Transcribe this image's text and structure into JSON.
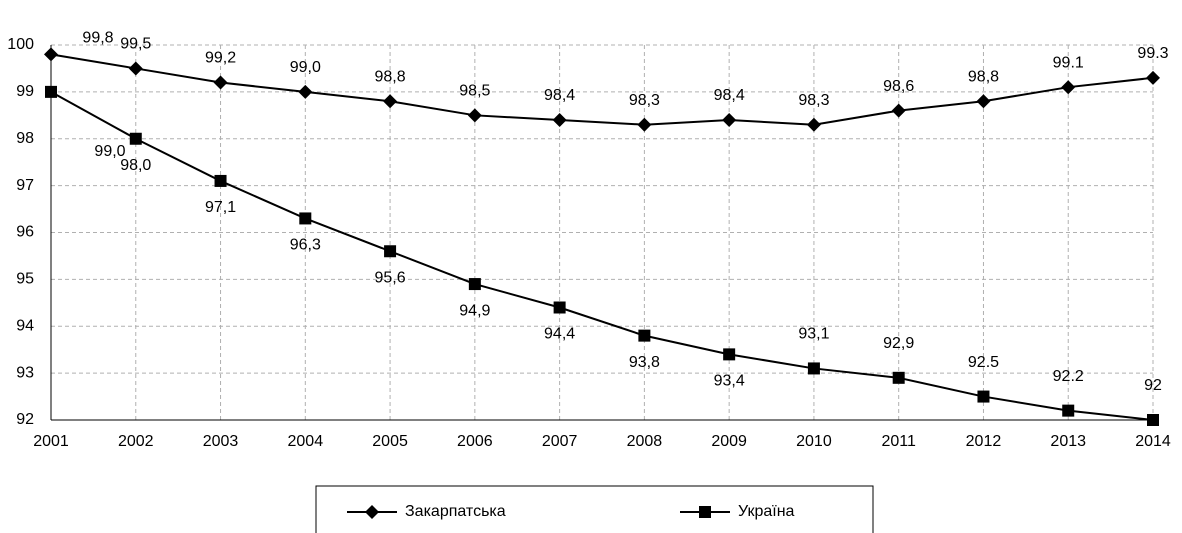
{
  "chart_data": {
    "type": "line",
    "categories": [
      "2001",
      "2002",
      "2003",
      "2004",
      "2005",
      "2006",
      "2007",
      "2008",
      "2009",
      "2010",
      "2011",
      "2012",
      "2013",
      "2014"
    ],
    "series": [
      {
        "name": "Закарпатська",
        "color": "#000000",
        "marker": "diamond",
        "values": [
          99.8,
          99.5,
          99.2,
          99.0,
          98.8,
          98.5,
          98.4,
          98.3,
          98.4,
          98.3,
          98.6,
          98.8,
          99.1,
          99.3
        ],
        "value_labels": [
          "99,8",
          "99,5",
          "99,2",
          "99,0",
          "98,8",
          "98,5",
          "98,4",
          "98,3",
          "98,4",
          "98,3",
          "98,6",
          "98,8",
          "99.1",
          "99.3"
        ]
      },
      {
        "name": "Україна",
        "color": "#000000",
        "marker": "square",
        "values": [
          99.0,
          98.0,
          97.1,
          96.3,
          95.6,
          94.9,
          94.4,
          93.8,
          93.4,
          93.1,
          92.9,
          92.5,
          92.2,
          92
        ],
        "value_labels": [
          "99,0",
          "98,0",
          "97,1",
          "96,3",
          "95,6",
          "94,9",
          "94,4",
          "93,8",
          "93,4",
          "93,1",
          "92,9",
          "92.5",
          "92.2",
          "92"
        ]
      }
    ],
    "ylim": [
      92,
      100
    ],
    "yticks": [
      92,
      93,
      94,
      95,
      96,
      97,
      98,
      99,
      100
    ],
    "grid": true,
    "legend": "bottom"
  }
}
